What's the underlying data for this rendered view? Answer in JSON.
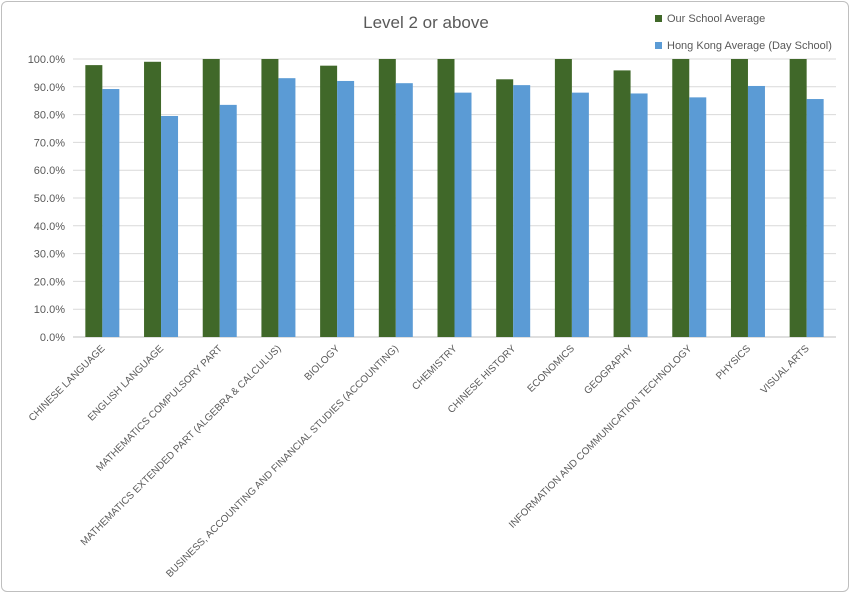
{
  "chart_data": {
    "type": "bar",
    "title": "Level 2 or above",
    "xlabel": "",
    "ylabel": "",
    "ylim": [
      0,
      100
    ],
    "yticks": [
      "0.0%",
      "10.0%",
      "20.0%",
      "30.0%",
      "40.0%",
      "50.0%",
      "60.0%",
      "70.0%",
      "80.0%",
      "90.0%",
      "100.0%"
    ],
    "grid": true,
    "legend_position": "top-right",
    "categories": [
      "CHINESE LANGUAGE",
      "ENGLISH LANGUAGE",
      "MATHEMATICS COMPULSORY PART",
      "MATHEMATICS EXTENDED PART (ALGEBRA & CALCULUS)",
      "BIOLOGY",
      "BUSINESS, ACCOUNTING AND FINANCIAL STUDIES (ACCOUNTING)",
      "CHEMISTRY",
      "CHINESE HISTORY",
      "ECONOMICS",
      "GEOGRAPHY",
      "INFORMATION AND COMMUNICATION TECHNOLOGY",
      "PHYSICS",
      "VISUAL ARTS"
    ],
    "series": [
      {
        "name": "Our School Average",
        "color": "#406829",
        "values": [
          97.8,
          99.0,
          100,
          100,
          97.6,
          100,
          100,
          92.7,
          100,
          95.9,
          100,
          100,
          100
        ]
      },
      {
        "name": "Hong Kong Average (Day School)",
        "color": "#5b9bd5",
        "values": [
          89.2,
          79.5,
          83.5,
          93.1,
          92.1,
          91.3,
          87.9,
          90.6,
          87.9,
          87.6,
          86.2,
          90.3,
          85.6
        ]
      }
    ]
  }
}
